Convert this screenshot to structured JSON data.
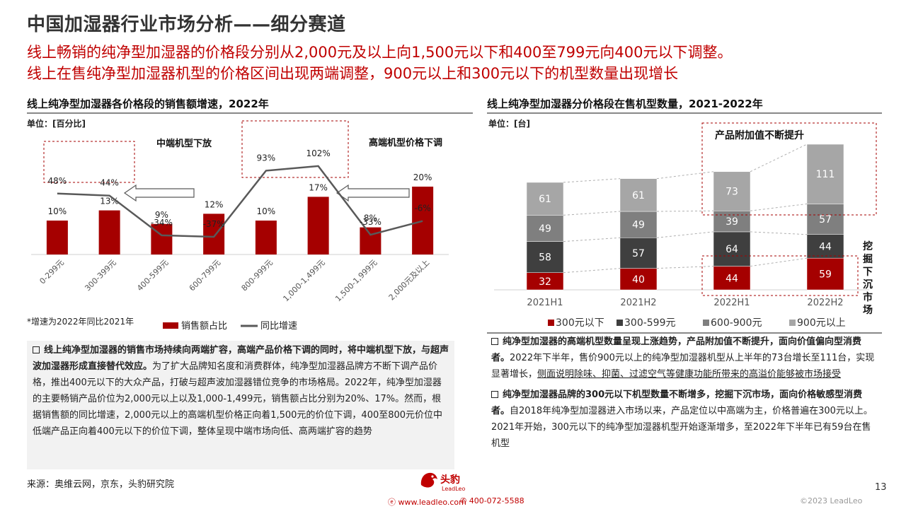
{
  "header": {
    "title": "中国加湿器行业市场分析——细分赛道",
    "sub1": "线上畅销的纯净型加湿器的价格段分别从2,000元及以上向1,500元以下和400至799元向400元以下调整。",
    "sub2": "线上在售纯净型加湿器机型的价格区间出现两端调整，900元以上和300元以下的机型数量出现增长"
  },
  "left_panel": {
    "title": "线上纯净型加湿器各价格段的销售额增速，2022年",
    "unit": "单位：[百分比]",
    "footnote": "*增速为2022年同比2021年",
    "annotation_mid": "中端机型下放",
    "annotation_high": "高端机型价格下调"
  },
  "right_panel": {
    "title": "线上纯净型加湿器分价格段在售机型数量，2021-2022年",
    "unit": "单位：[台]",
    "annotation_top": "产品附加值不断提升",
    "annotation_side": "挖掘下沉市场"
  },
  "chart_data": [
    {
      "type": "bar+line",
      "title": "线上纯净型加湿器各价格段的销售额增速，2022年",
      "categories": [
        "0-299元",
        "300-399元",
        "400-599元",
        "600-799元",
        "800-999元",
        "1,000-1,499元",
        "1,500-1,999元",
        "2,000元及以上"
      ],
      "series": [
        {
          "name": "销售额占比",
          "type": "bar",
          "values": [
            10,
            13,
            9,
            12,
            10,
            17,
            8,
            20
          ],
          "labels": [
            "10%",
            "13%",
            "9%",
            "12%",
            "10%",
            "17%",
            "8%",
            "20%"
          ],
          "color": "#a50000"
        },
        {
          "name": "同比增速",
          "type": "line",
          "values": [
            48,
            44,
            -34,
            -37,
            93,
            102,
            -33,
            -6
          ],
          "labels": [
            "48%",
            "44%",
            "-34%",
            "-37%",
            "93%",
            "102%",
            "-33%",
            "-6%"
          ],
          "color": "#595959"
        }
      ],
      "legend_position": "bottom-left"
    },
    {
      "type": "stacked-bar",
      "title": "线上纯净型加湿器分价格段在售机型数量，2021-2022年",
      "categories": [
        "2021H1",
        "2021H2",
        "2022H1",
        "2022H2"
      ],
      "series": [
        {
          "name": "300元以下",
          "values": [
            32,
            40,
            44,
            59
          ],
          "color": "#a50000"
        },
        {
          "name": "300-599元",
          "values": [
            58,
            57,
            64,
            44
          ],
          "color": "#3f3f3f"
        },
        {
          "name": "600-900元",
          "values": [
            49,
            49,
            39,
            57
          ],
          "color": "#7f7f7f"
        },
        {
          "name": "900元以上",
          "values": [
            61,
            61,
            73,
            111
          ],
          "color": "#a6a6a6"
        }
      ],
      "legend_position": "bottom"
    }
  ],
  "text_left": {
    "p1_bold": "线上纯净型加湿器的销售市场持续向两端扩容，高端产品价格下调的同时，将中端机型下放，与超声波加湿器形成直接替代效应。",
    "p1_rest": "为了扩大品牌知名度和消费群体，纯净型加湿器品牌方不断下调产品价格，推出400元以下的大众产品，打破与超声波加湿器错位竞争的市场格局。2022年，纯净型加湿器的主要畅销产品价位为2,000元以上以及1,000-1,499元，销售额占比分别为20%、17%。然而，根据销售额的同比增速，2,000元以上的高端机型价格正向着1,500元的价位下调，400至800元价位中低端产品正向着400元以下的价位下调，整体呈现中端市场向低、高两端扩容的趋势"
  },
  "text_right": {
    "p1_bold": "纯净型加湿器的高端机型数量呈现上涨趋势，产品附加值不断提升，面向价值偏向型消费者。",
    "p1_rest": "2022年下半年，售价900元以上的纯净型加湿器机型从上半年的73台增长至111台，实现显著增长，",
    "p1_underline": "侧面说明除味、抑菌、过滤空气等健康功能所带来的高溢价能够被市场接受",
    "p2_bold": "纯净型加湿器品牌的300元以下机型数量不断增多，挖掘下沉市场，面向价格敏感型消费者。",
    "p2_rest": "自2018年纯净型加湿器进入市场以来，产品定位以中高端为主，价格普遍在300元以上。2021年开始，300元以下的纯净型加湿器机型开始逐渐增多，至2022年下半年已有59台在售机型"
  },
  "footer": {
    "source": "来源：奥维云网，京东，头豹研究院",
    "page": "13",
    "copyright": "©2023 LeadLeo",
    "website": "www.leadleo.com",
    "phone": "400-072-5588",
    "logo_cn": "头豹",
    "logo_en": "LeadLeo"
  }
}
